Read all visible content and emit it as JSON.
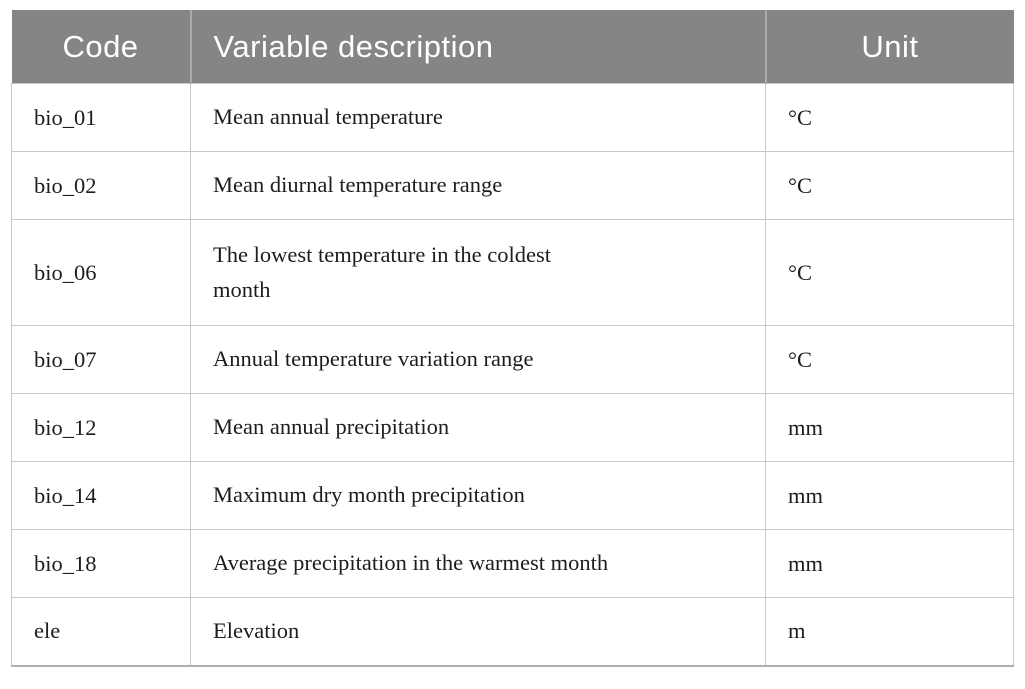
{
  "table": {
    "columns": [
      {
        "label": "Code"
      },
      {
        "label": "Variable description"
      },
      {
        "label": "Unit"
      }
    ],
    "rows": [
      {
        "code": "bio_01",
        "description": "Mean annual temperature",
        "unit": "°C"
      },
      {
        "code": "bio_02",
        "description": "Mean diurnal temperature range",
        "unit": "°C"
      },
      {
        "code": "bio_06",
        "description": "The lowest temperature in the coldest\nmonth",
        "unit": "°C"
      },
      {
        "code": "bio_07",
        "description": "Annual temperature variation range",
        "unit": "°C"
      },
      {
        "code": "bio_12",
        "description": "Mean annual precipitation",
        "unit": "mm"
      },
      {
        "code": "bio_14",
        "description": "Maximum dry month precipitation",
        "unit": "mm"
      },
      {
        "code": "bio_18",
        "description": "Average precipitation in the warmest month",
        "unit": "mm"
      },
      {
        "code": "ele",
        "description": "Elevation",
        "unit": "m"
      }
    ],
    "colors": {
      "header_bg": "#858586",
      "header_text": "#ffffff",
      "body_text": "#1d1d1d",
      "grid_line": "#c8c8c8",
      "bottom_border": "#b0b0b0"
    }
  }
}
